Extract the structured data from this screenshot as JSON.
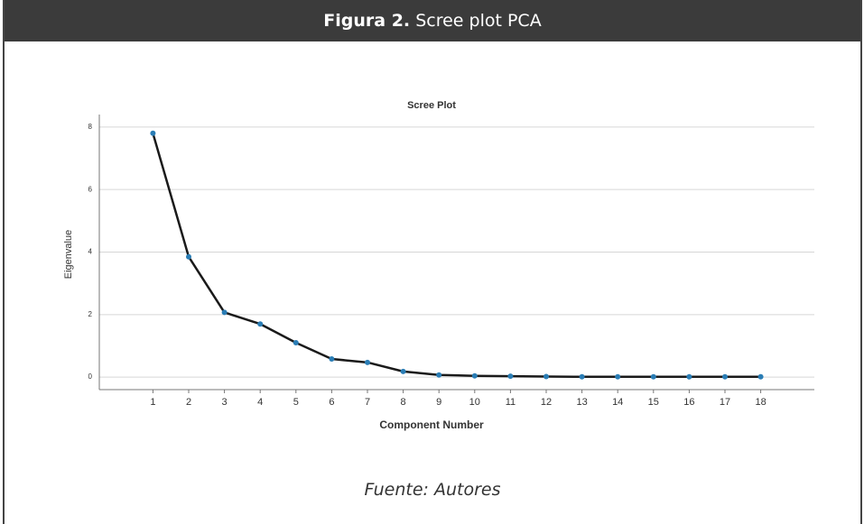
{
  "header": {
    "label": "Figura 2.",
    "title": "Scree plot PCA"
  },
  "caption": "Fuente: Autores",
  "chart_data": {
    "type": "line",
    "title": "Scree Plot",
    "x_label": "Component Number",
    "y_label": "Eigenvalue",
    "x": [
      1,
      2,
      3,
      4,
      5,
      6,
      7,
      8,
      9,
      10,
      11,
      12,
      13,
      14,
      15,
      16,
      17,
      18
    ],
    "values": [
      7.8,
      3.85,
      2.07,
      1.7,
      1.1,
      0.58,
      0.47,
      0.18,
      0.07,
      0.04,
      0.03,
      0.02,
      0.01,
      0.01,
      0.01,
      0.01,
      0.01,
      0.01
    ],
    "color": "#1a1a1a",
    "marker_color": "#2a7db5",
    "xlim": [
      -0.5,
      19.5
    ],
    "xticks": [
      1,
      2,
      3,
      4,
      5,
      6,
      7,
      8,
      9,
      10,
      11,
      12,
      13,
      14,
      15,
      16,
      17,
      18
    ],
    "ylim": [
      -0.4,
      8.4
    ],
    "yticks": [
      0,
      2,
      4,
      6,
      8
    ],
    "grid": true
  }
}
